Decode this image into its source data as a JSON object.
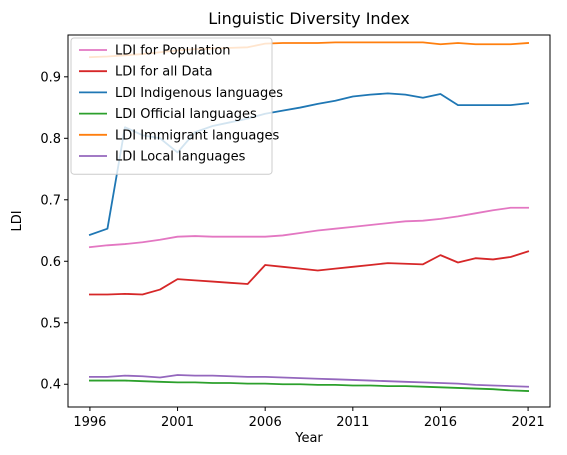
{
  "chart_data": {
    "type": "line",
    "title": "Linguistic Diversity Index",
    "xlabel": "Year",
    "ylabel": "LDI",
    "xlim": [
      1994.75,
      2022.25
    ],
    "ylim": [
      0.363,
      0.968
    ],
    "x_ticks": [
      1996,
      2001,
      2006,
      2011,
      2016,
      2021
    ],
    "y_ticks": [
      0.4,
      0.5,
      0.6,
      0.7,
      0.8,
      0.9
    ],
    "legend_position": "top-left",
    "grid": false,
    "x": [
      1996,
      1997,
      1998,
      1999,
      2000,
      2001,
      2002,
      2003,
      2004,
      2005,
      2006,
      2007,
      2008,
      2009,
      2010,
      2011,
      2012,
      2013,
      2014,
      2015,
      2016,
      2017,
      2018,
      2019,
      2020,
      2021
    ],
    "series": [
      {
        "name": "LDI for Population",
        "color": "#e377c2",
        "values": [
          0.623,
          0.626,
          0.628,
          0.631,
          0.635,
          0.64,
          0.641,
          0.64,
          0.64,
          0.64,
          0.64,
          0.642,
          0.646,
          0.65,
          0.653,
          0.656,
          0.659,
          0.662,
          0.665,
          0.666,
          0.669,
          0.673,
          0.678,
          0.683,
          0.687,
          0.687
        ]
      },
      {
        "name": "LDI for all Data",
        "color": "#d62728",
        "values": [
          0.546,
          0.546,
          0.547,
          0.546,
          0.554,
          0.571,
          0.569,
          0.567,
          0.565,
          0.563,
          0.594,
          0.591,
          0.588,
          0.585,
          0.588,
          0.591,
          0.594,
          0.597,
          0.596,
          0.595,
          0.61,
          0.598,
          0.605,
          0.603,
          0.607,
          0.616
        ]
      },
      {
        "name": "LDI Indigenous languages",
        "color": "#1f77b4",
        "values": [
          0.643,
          0.653,
          0.818,
          0.805,
          0.8,
          0.777,
          0.81,
          0.82,
          0.826,
          0.832,
          0.84,
          0.845,
          0.85,
          0.856,
          0.861,
          0.868,
          0.871,
          0.873,
          0.871,
          0.866,
          0.872,
          0.854,
          0.854,
          0.854,
          0.854,
          0.857
        ]
      },
      {
        "name": "LDI Official languages",
        "color": "#2ca02c",
        "values": [
          0.406,
          0.406,
          0.406,
          0.405,
          0.404,
          0.403,
          0.403,
          0.402,
          0.402,
          0.401,
          0.401,
          0.4,
          0.4,
          0.399,
          0.399,
          0.398,
          0.398,
          0.397,
          0.397,
          0.396,
          0.395,
          0.394,
          0.393,
          0.392,
          0.39,
          0.389
        ]
      },
      {
        "name": "LDI Immigrant languages",
        "color": "#ff7f0e",
        "values": [
          0.932,
          0.933,
          0.935,
          0.937,
          0.94,
          0.943,
          0.945,
          0.946,
          0.947,
          0.948,
          0.954,
          0.955,
          0.955,
          0.955,
          0.956,
          0.956,
          0.956,
          0.956,
          0.956,
          0.956,
          0.953,
          0.955,
          0.953,
          0.953,
          0.953,
          0.955
        ]
      },
      {
        "name": "LDI Local languages",
        "color": "#9467bd",
        "values": [
          0.412,
          0.412,
          0.414,
          0.413,
          0.411,
          0.415,
          0.414,
          0.414,
          0.413,
          0.412,
          0.412,
          0.411,
          0.41,
          0.409,
          0.408,
          0.407,
          0.406,
          0.405,
          0.404,
          0.403,
          0.402,
          0.401,
          0.399,
          0.398,
          0.397,
          0.396
        ]
      }
    ]
  }
}
